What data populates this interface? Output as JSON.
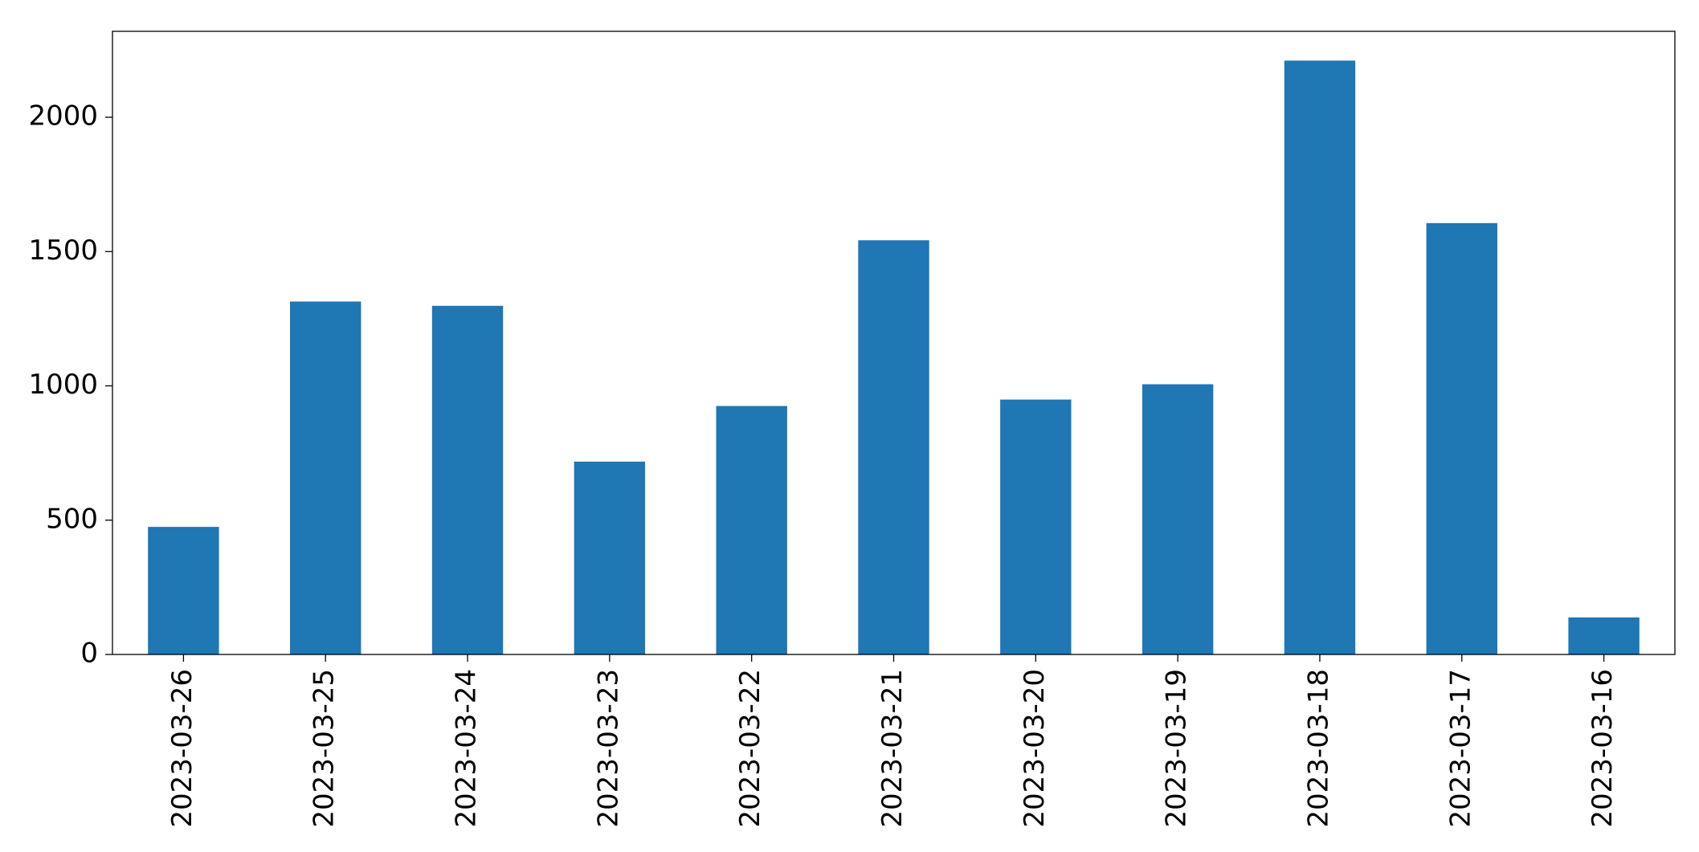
{
  "chart_data": {
    "type": "bar",
    "categories": [
      "2023-03-26",
      "2023-03-25",
      "2023-03-24",
      "2023-03-23",
      "2023-03-22",
      "2023-03-21",
      "2023-03-20",
      "2023-03-19",
      "2023-03-18",
      "2023-03-17",
      "2023-03-16"
    ],
    "values": [
      475,
      1314,
      1298,
      718,
      925,
      1542,
      949,
      1006,
      2211,
      1606,
      138
    ],
    "color": "#1f77b4",
    "ylim": [
      0,
      2320
    ],
    "yticks": [
      0,
      500,
      1000,
      1500,
      2000
    ],
    "grid": false
  }
}
